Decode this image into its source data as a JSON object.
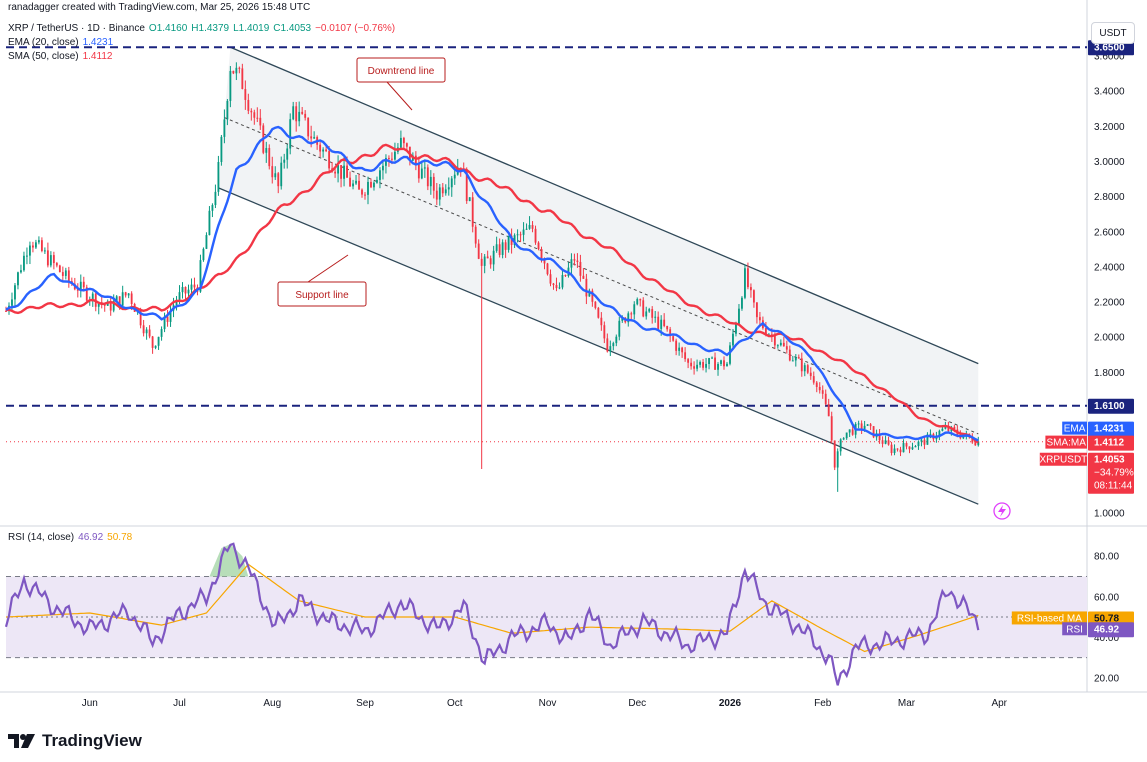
{
  "header": {
    "created_by": "ranadagger created with TradingView.com, Mar 25, 2026 15:48 UTC",
    "symbol": "XRP / TetherUS · 1D · Binance",
    "open": "O1.4160",
    "high": "H1.4379",
    "low": "L1.4019",
    "close": "C1.4053",
    "change": "−0.0107 (−0.76%)",
    "ema_label": "EMA (20, close)",
    "ema_value": "1.4231",
    "sma_label": "SMA (50, close)",
    "sma_value": "1.4112"
  },
  "rsi_legend": {
    "label": "RSI (14, close)",
    "rsi_value": "46.92",
    "ma_value": "50.78"
  },
  "currency": "USDT",
  "annotations": {
    "downtrend": "Downtrend line",
    "support": "Support line"
  },
  "price_tags": {
    "resistance_top": "3.6500",
    "resistance_level": "1.6100",
    "ema_name": "EMA",
    "ema_value": "1.4231",
    "sma_name": "SMA:MA",
    "sma_value": "1.4112",
    "sym_name": "XRPUSDT",
    "sym_value": "1.4053",
    "sym_change": "−34.79%",
    "sym_countdown": "08:11:44",
    "rsima_name": "RSI-based MA",
    "rsima_value": "50.78",
    "rsi_name": "RSI",
    "rsi_value": "46.92"
  },
  "brand": "TradingView",
  "colors": {
    "up": "#089981",
    "down": "#f23645",
    "ema": "#2962ff",
    "sma": "#f23645",
    "rsi": "#7e57c2",
    "rsi_ma": "#f7a600",
    "channel_line": "#2f4858",
    "channel_fill": "#eef0f3",
    "rsi_band": "#ede7f6"
  },
  "chart_data": [
    {
      "type": "candlestick",
      "title": "XRP / TetherUS · 1D · Binance",
      "y_ticks": [
        1.0,
        1.2,
        1.4,
        1.6,
        1.8,
        2.0,
        2.2,
        2.4,
        2.6,
        2.8,
        3.0,
        3.2,
        3.4,
        3.6
      ],
      "y_tick_labels": [
        "1.0000",
        "1.2000",
        "1.4000",
        "1.6000",
        "1.8000",
        "2.0000",
        "2.2000",
        "2.4000",
        "2.6000",
        "2.8000",
        "3.0000",
        "3.2000",
        "3.4000",
        "3.6000"
      ],
      "ylim": [
        0.96,
        3.68
      ],
      "x_ticks": [
        {
          "label": "Jun",
          "date": "2025-06-01"
        },
        {
          "label": "Jul",
          "date": "2025-07-01"
        },
        {
          "label": "Aug",
          "date": "2025-08-01"
        },
        {
          "label": "Sep",
          "date": "2025-09-01"
        },
        {
          "label": "Oct",
          "date": "2025-10-01"
        },
        {
          "label": "Nov",
          "date": "2025-11-01"
        },
        {
          "label": "Dec",
          "date": "2025-12-01"
        },
        {
          "label": "2026",
          "date": "2026-01-01"
        },
        {
          "label": "Feb",
          "date": "2026-02-01"
        },
        {
          "label": "Mar",
          "date": "2026-03-01"
        },
        {
          "label": "Apr",
          "date": "2026-04-01"
        }
      ],
      "xlim": [
        "2025-05-04",
        "2026-04-30"
      ],
      "key_points": [
        {
          "date": "2025-05-04",
          "close": 2.15
        },
        {
          "date": "2025-05-12",
          "close": 2.56
        },
        {
          "date": "2025-05-25",
          "close": 2.32
        },
        {
          "date": "2025-06-07",
          "close": 2.17
        },
        {
          "date": "2025-06-14",
          "close": 2.25
        },
        {
          "date": "2025-06-22",
          "close": 1.95
        },
        {
          "date": "2025-06-30",
          "close": 2.22
        },
        {
          "date": "2025-07-07",
          "close": 2.3
        },
        {
          "date": "2025-07-14",
          "close": 2.95
        },
        {
          "date": "2025-07-18",
          "close": 3.55
        },
        {
          "date": "2025-07-22",
          "close": 3.45
        },
        {
          "date": "2025-07-30",
          "close": 3.05
        },
        {
          "date": "2025-08-03",
          "close": 2.85
        },
        {
          "date": "2025-08-08",
          "close": 3.3
        },
        {
          "date": "2025-08-16",
          "close": 3.1
        },
        {
          "date": "2025-08-30",
          "close": 2.82
        },
        {
          "date": "2025-09-13",
          "close": 3.1
        },
        {
          "date": "2025-09-25",
          "close": 2.82
        },
        {
          "date": "2025-10-03",
          "close": 3.0
        },
        {
          "date": "2025-10-10",
          "close": 2.4
        },
        {
          "date": "2025-10-16",
          "close": 2.5
        },
        {
          "date": "2025-10-27",
          "close": 2.62
        },
        {
          "date": "2025-11-04",
          "close": 2.25
        },
        {
          "date": "2025-11-10",
          "close": 2.45
        },
        {
          "date": "2025-11-21",
          "close": 1.95
        },
        {
          "date": "2025-11-30",
          "close": 2.2
        },
        {
          "date": "2025-12-10",
          "close": 2.05
        },
        {
          "date": "2025-12-18",
          "close": 1.85
        },
        {
          "date": "2025-12-31",
          "close": 1.85
        },
        {
          "date": "2026-01-06",
          "close": 2.35
        },
        {
          "date": "2026-01-10",
          "close": 2.1
        },
        {
          "date": "2026-01-20",
          "close": 1.92
        },
        {
          "date": "2026-01-30",
          "close": 1.75
        },
        {
          "date": "2026-02-03",
          "close": 1.55
        },
        {
          "date": "2026-02-05",
          "close": 1.28
        },
        {
          "date": "2026-02-08",
          "close": 1.45
        },
        {
          "date": "2026-02-15",
          "close": 1.5
        },
        {
          "date": "2026-02-24",
          "close": 1.36
        },
        {
          "date": "2026-03-06",
          "close": 1.4
        },
        {
          "date": "2026-03-14",
          "close": 1.48
        },
        {
          "date": "2026-03-25",
          "close": 1.4053
        }
      ],
      "wick_lows": [
        {
          "date": "2025-10-10",
          "low": 1.25
        },
        {
          "date": "2026-02-06",
          "low": 1.12
        }
      ],
      "ema20": [
        {
          "date": "2025-05-04",
          "v": 2.15
        },
        {
          "date": "2025-05-20",
          "v": 2.35
        },
        {
          "date": "2025-06-10",
          "v": 2.2
        },
        {
          "date": "2025-06-25",
          "v": 2.1
        },
        {
          "date": "2025-07-08",
          "v": 2.28
        },
        {
          "date": "2025-07-20",
          "v": 2.95
        },
        {
          "date": "2025-08-01",
          "v": 3.18
        },
        {
          "date": "2025-08-15",
          "v": 3.12
        },
        {
          "date": "2025-09-01",
          "v": 2.95
        },
        {
          "date": "2025-09-15",
          "v": 3.02
        },
        {
          "date": "2025-10-04",
          "v": 2.95
        },
        {
          "date": "2025-10-20",
          "v": 2.55
        },
        {
          "date": "2025-11-05",
          "v": 2.4
        },
        {
          "date": "2025-11-25",
          "v": 2.12
        },
        {
          "date": "2025-12-10",
          "v": 2.02
        },
        {
          "date": "2025-12-31",
          "v": 1.9
        },
        {
          "date": "2026-01-12",
          "v": 2.08
        },
        {
          "date": "2026-01-28",
          "v": 1.9
        },
        {
          "date": "2026-02-12",
          "v": 1.48
        },
        {
          "date": "2026-02-28",
          "v": 1.42
        },
        {
          "date": "2026-03-14",
          "v": 1.45
        },
        {
          "date": "2026-03-25",
          "v": 1.4231
        }
      ],
      "sma50": [
        {
          "date": "2025-05-04",
          "v": 2.15
        },
        {
          "date": "2025-06-01",
          "v": 2.2
        },
        {
          "date": "2025-06-25",
          "v": 2.15
        },
        {
          "date": "2025-07-15",
          "v": 2.35
        },
        {
          "date": "2025-08-05",
          "v": 2.75
        },
        {
          "date": "2025-08-25",
          "v": 3.0
        },
        {
          "date": "2025-09-10",
          "v": 3.08
        },
        {
          "date": "2025-10-01",
          "v": 2.98
        },
        {
          "date": "2025-10-25",
          "v": 2.78
        },
        {
          "date": "2025-11-20",
          "v": 2.52
        },
        {
          "date": "2025-12-15",
          "v": 2.22
        },
        {
          "date": "2026-01-05",
          "v": 2.05
        },
        {
          "date": "2026-01-25",
          "v": 1.98
        },
        {
          "date": "2026-02-15",
          "v": 1.78
        },
        {
          "date": "2026-03-05",
          "v": 1.55
        },
        {
          "date": "2026-03-25",
          "v": 1.4112
        }
      ],
      "channel": {
        "upper": [
          {
            "date": "2025-07-18",
            "v": 3.65
          },
          {
            "date": "2026-03-25",
            "v": 1.85
          }
        ],
        "lower": [
          {
            "date": "2025-07-14",
            "v": 2.85
          },
          {
            "date": "2026-03-25",
            "v": 1.05
          }
        ],
        "mid": [
          {
            "date": "2025-07-16",
            "v": 3.25
          },
          {
            "date": "2026-03-25",
            "v": 1.45
          }
        ]
      },
      "horizontal_levels": [
        3.65,
        1.61
      ]
    },
    {
      "type": "line",
      "title": "RSI (14, close)",
      "y_ticks": [
        20,
        40,
        60,
        80
      ],
      "y_tick_labels": [
        "20.00",
        "40.00",
        "60.00",
        "80.00"
      ],
      "ylim": [
        14,
        88
      ],
      "band": [
        30,
        70
      ],
      "midline": 50,
      "series": [
        {
          "name": "RSI",
          "key_points": [
            {
              "date": "2025-05-04",
              "v": 48
            },
            {
              "date": "2025-05-10",
              "v": 68
            },
            {
              "date": "2025-05-20",
              "v": 55
            },
            {
              "date": "2025-06-01",
              "v": 44
            },
            {
              "date": "2025-06-14",
              "v": 53
            },
            {
              "date": "2025-06-22",
              "v": 38
            },
            {
              "date": "2025-07-01",
              "v": 52
            },
            {
              "date": "2025-07-10",
              "v": 60
            },
            {
              "date": "2025-07-18",
              "v": 86
            },
            {
              "date": "2025-07-24",
              "v": 74
            },
            {
              "date": "2025-08-02",
              "v": 45
            },
            {
              "date": "2025-08-10",
              "v": 58
            },
            {
              "date": "2025-08-20",
              "v": 48
            },
            {
              "date": "2025-09-01",
              "v": 43
            },
            {
              "date": "2025-09-13",
              "v": 57
            },
            {
              "date": "2025-09-25",
              "v": 44
            },
            {
              "date": "2025-10-04",
              "v": 55
            },
            {
              "date": "2025-10-11",
              "v": 28
            },
            {
              "date": "2025-10-20",
              "v": 40
            },
            {
              "date": "2025-11-01",
              "v": 47
            },
            {
              "date": "2025-11-08",
              "v": 38
            },
            {
              "date": "2025-11-15",
              "v": 52
            },
            {
              "date": "2025-11-22",
              "v": 36
            },
            {
              "date": "2025-12-03",
              "v": 48
            },
            {
              "date": "2025-12-18",
              "v": 36
            },
            {
              "date": "2025-12-31",
              "v": 42
            },
            {
              "date": "2026-01-06",
              "v": 74
            },
            {
              "date": "2026-01-12",
              "v": 58
            },
            {
              "date": "2026-01-25",
              "v": 44
            },
            {
              "date": "2026-02-03",
              "v": 30
            },
            {
              "date": "2026-02-06",
              "v": 17
            },
            {
              "date": "2026-02-12",
              "v": 35
            },
            {
              "date": "2026-02-24",
              "v": 38
            },
            {
              "date": "2026-03-08",
              "v": 42
            },
            {
              "date": "2026-03-15",
              "v": 64
            },
            {
              "date": "2026-03-25",
              "v": 46.92
            }
          ]
        },
        {
          "name": "RSI-based MA",
          "key_points": [
            {
              "date": "2025-05-04",
              "v": 50
            },
            {
              "date": "2025-06-01",
              "v": 52
            },
            {
              "date": "2025-06-25",
              "v": 46
            },
            {
              "date": "2025-07-10",
              "v": 52
            },
            {
              "date": "2025-07-24",
              "v": 76
            },
            {
              "date": "2025-08-10",
              "v": 58
            },
            {
              "date": "2025-09-01",
              "v": 50
            },
            {
              "date": "2025-10-01",
              "v": 50
            },
            {
              "date": "2025-10-20",
              "v": 42
            },
            {
              "date": "2025-11-15",
              "v": 45
            },
            {
              "date": "2025-12-15",
              "v": 44
            },
            {
              "date": "2026-01-01",
              "v": 43
            },
            {
              "date": "2026-01-15",
              "v": 58
            },
            {
              "date": "2026-02-01",
              "v": 44
            },
            {
              "date": "2026-02-15",
              "v": 33
            },
            {
              "date": "2026-03-05",
              "v": 41
            },
            {
              "date": "2026-03-25",
              "v": 50.78
            }
          ]
        }
      ]
    }
  ]
}
